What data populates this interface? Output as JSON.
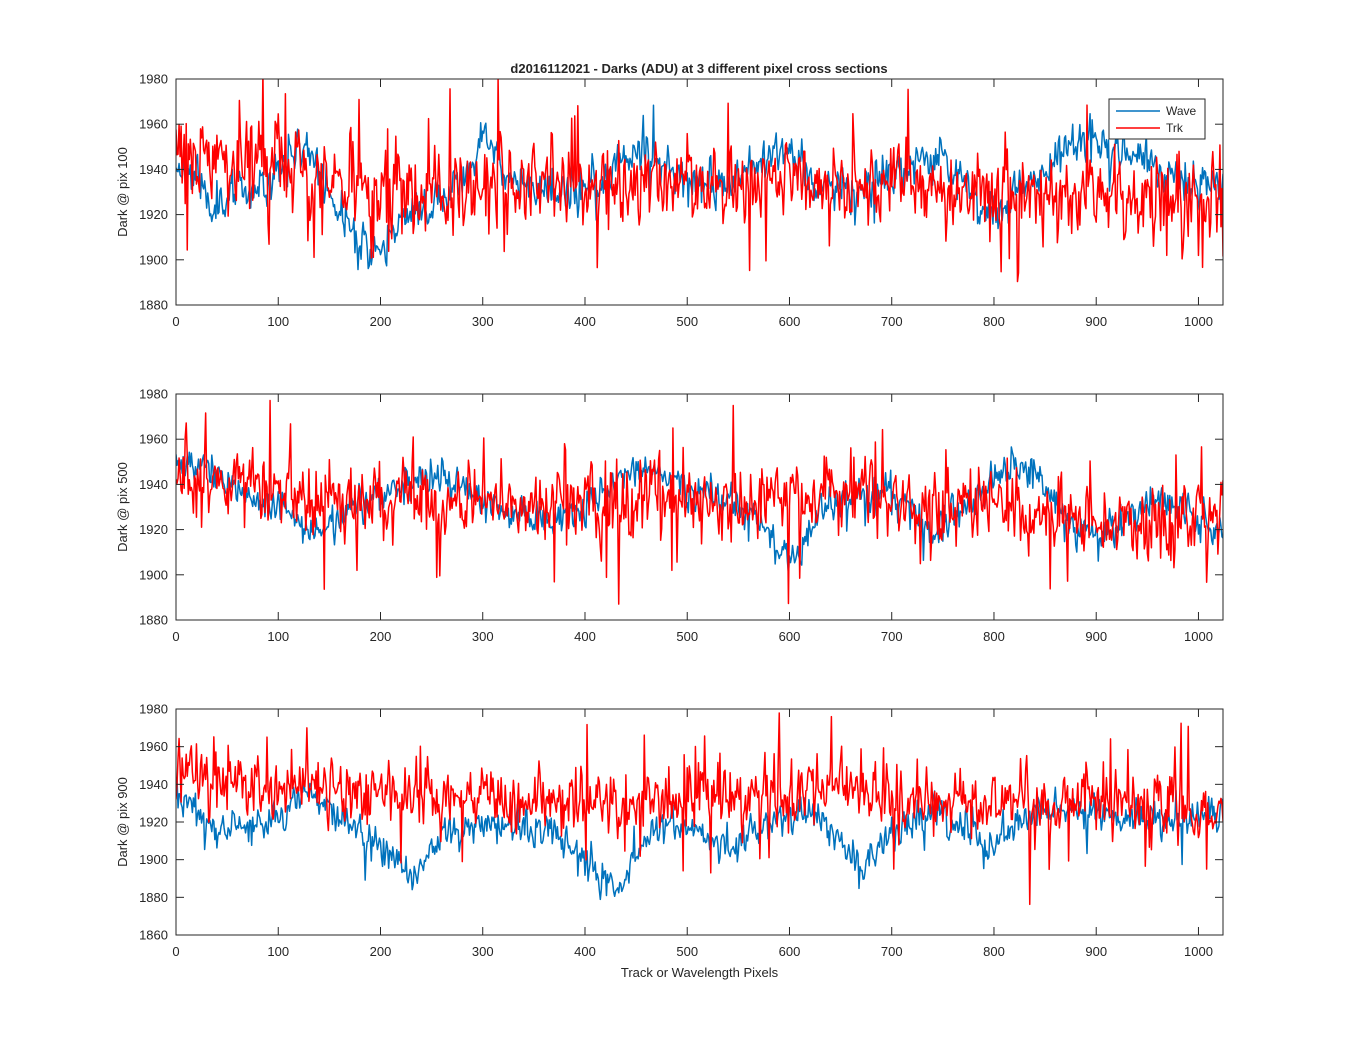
{
  "chart_data": [
    {
      "type": "line",
      "title": "d2016112021 - Darks (ADU) at 3 different pixel cross sections",
      "xlabel": "",
      "ylabel": "Dark @ pix 100",
      "xlim": [
        0,
        1024
      ],
      "ylim": [
        1880,
        1980
      ],
      "xticks": [
        0,
        100,
        200,
        300,
        400,
        500,
        600,
        700,
        800,
        900,
        1000
      ],
      "yticks": [
        1880,
        1900,
        1920,
        1940,
        1960,
        1980
      ],
      "legend": {
        "position": "top-right",
        "entries": [
          "Wave",
          "Trk"
        ]
      },
      "series": [
        {
          "name": "Wave",
          "color": "#0072BD",
          "anchors": [
            [
              0,
              1942
            ],
            [
              20,
              1938
            ],
            [
              30,
              1925
            ],
            [
              60,
              1930
            ],
            [
              90,
              1935
            ],
            [
              110,
              1945
            ],
            [
              125,
              1952
            ],
            [
              140,
              1940
            ],
            [
              155,
              1925
            ],
            [
              175,
              1910
            ],
            [
              200,
              1902
            ],
            [
              215,
              1915
            ],
            [
              250,
              1925
            ],
            [
              280,
              1935
            ],
            [
              295,
              1948
            ],
            [
              305,
              1955
            ],
            [
              315,
              1945
            ],
            [
              330,
              1935
            ],
            [
              380,
              1928
            ],
            [
              420,
              1935
            ],
            [
              440,
              1948
            ],
            [
              460,
              1950
            ],
            [
              480,
              1938
            ],
            [
              540,
              1932
            ],
            [
              560,
              1942
            ],
            [
              580,
              1948
            ],
            [
              600,
              1948
            ],
            [
              620,
              1935
            ],
            [
              660,
              1930
            ],
            [
              700,
              1940
            ],
            [
              750,
              1945
            ],
            [
              770,
              1935
            ],
            [
              790,
              1918
            ],
            [
              810,
              1925
            ],
            [
              840,
              1935
            ],
            [
              870,
              1950
            ],
            [
              890,
              1955
            ],
            [
              910,
              1950
            ],
            [
              950,
              1945
            ],
            [
              980,
              1935
            ],
            [
              1024,
              1930
            ]
          ],
          "noise": 6,
          "spikes": 0.02,
          "seed": 11
        },
        {
          "name": "Trk",
          "color": "#FF0000",
          "anchors": [
            [
              0,
              1945
            ],
            [
              50,
              1945
            ],
            [
              100,
              1942
            ],
            [
              150,
              1936
            ],
            [
              200,
              1930
            ],
            [
              300,
              1933
            ],
            [
              400,
              1932
            ],
            [
              500,
              1933
            ],
            [
              600,
              1935
            ],
            [
              700,
              1933
            ],
            [
              800,
              1930
            ],
            [
              900,
              1926
            ],
            [
              1024,
              1925
            ]
          ],
          "noise": 12,
          "spikes": 0.05,
          "seed": 29
        }
      ]
    },
    {
      "type": "line",
      "title": "",
      "xlabel": "",
      "ylabel": "Dark @ pix 500",
      "xlim": [
        0,
        1024
      ],
      "ylim": [
        1880,
        1980
      ],
      "xticks": [
        0,
        100,
        200,
        300,
        400,
        500,
        600,
        700,
        800,
        900,
        1000
      ],
      "yticks": [
        1880,
        1900,
        1920,
        1940,
        1960,
        1980
      ],
      "series": [
        {
          "name": "Wave",
          "color": "#0072BD",
          "anchors": [
            [
              0,
              1948
            ],
            [
              30,
              1950
            ],
            [
              60,
              1935
            ],
            [
              100,
              1930
            ],
            [
              140,
              1918
            ],
            [
              170,
              1930
            ],
            [
              220,
              1940
            ],
            [
              260,
              1945
            ],
            [
              300,
              1932
            ],
            [
              360,
              1925
            ],
            [
              400,
              1930
            ],
            [
              440,
              1945
            ],
            [
              470,
              1948
            ],
            [
              500,
              1938
            ],
            [
              560,
              1930
            ],
            [
              590,
              1912
            ],
            [
              605,
              1905
            ],
            [
              630,
              1930
            ],
            [
              700,
              1935
            ],
            [
              740,
              1920
            ],
            [
              780,
              1932
            ],
            [
              820,
              1950
            ],
            [
              860,
              1935
            ],
            [
              880,
              1918
            ],
            [
              920,
              1920
            ],
            [
              960,
              1935
            ],
            [
              1000,
              1925
            ],
            [
              1024,
              1915
            ]
          ],
          "noise": 5,
          "spikes": 0.02,
          "seed": 53
        },
        {
          "name": "Trk",
          "color": "#FF0000",
          "anchors": [
            [
              0,
              1945
            ],
            [
              60,
              1940
            ],
            [
              120,
              1935
            ],
            [
              200,
              1933
            ],
            [
              300,
              1932
            ],
            [
              400,
              1929
            ],
            [
              500,
              1932
            ],
            [
              600,
              1933
            ],
            [
              700,
              1933
            ],
            [
              800,
              1932
            ],
            [
              880,
              1925
            ],
            [
              940,
              1922
            ],
            [
              1024,
              1925
            ]
          ],
          "noise": 11,
          "spikes": 0.05,
          "seed": 71
        }
      ]
    },
    {
      "type": "line",
      "title": "",
      "xlabel": "Track or Wavelength Pixels",
      "ylabel": "Dark @ pix 900",
      "xlim": [
        0,
        1024
      ],
      "ylim": [
        1860,
        1980
      ],
      "xticks": [
        0,
        100,
        200,
        300,
        400,
        500,
        600,
        700,
        800,
        900,
        1000
      ],
      "yticks": [
        1860,
        1880,
        1900,
        1920,
        1940,
        1960,
        1980
      ],
      "series": [
        {
          "name": "Wave",
          "color": "#0072BD",
          "anchors": [
            [
              0,
              1935
            ],
            [
              40,
              1915
            ],
            [
              100,
              1922
            ],
            [
              130,
              1938
            ],
            [
              180,
              1915
            ],
            [
              210,
              1905
            ],
            [
              232,
              1890
            ],
            [
              260,
              1915
            ],
            [
              320,
              1918
            ],
            [
              370,
              1915
            ],
            [
              405,
              1900
            ],
            [
              430,
              1882
            ],
            [
              460,
              1915
            ],
            [
              500,
              1918
            ],
            [
              540,
              1905
            ],
            [
              560,
              1915
            ],
            [
              620,
              1925
            ],
            [
              640,
              1915
            ],
            [
              670,
              1895
            ],
            [
              700,
              1915
            ],
            [
              740,
              1925
            ],
            [
              780,
              1915
            ],
            [
              800,
              1905
            ],
            [
              830,
              1925
            ],
            [
              900,
              1925
            ],
            [
              950,
              1918
            ],
            [
              1024,
              1928
            ]
          ],
          "noise": 6,
          "spikes": 0.02,
          "seed": 97
        },
        {
          "name": "Trk",
          "color": "#FF0000",
          "anchors": [
            [
              0,
              1945
            ],
            [
              60,
              1943
            ],
            [
              100,
              1940
            ],
            [
              140,
              1938
            ],
            [
              200,
              1935
            ],
            [
              300,
              1930
            ],
            [
              350,
              1932
            ],
            [
              400,
              1930
            ],
            [
              500,
              1932
            ],
            [
              600,
              1935
            ],
            [
              660,
              1937
            ],
            [
              700,
              1933
            ],
            [
              800,
              1930
            ],
            [
              900,
              1928
            ],
            [
              1024,
              1928
            ]
          ],
          "noise": 11,
          "spikes": 0.05,
          "seed": 113
        }
      ]
    }
  ]
}
